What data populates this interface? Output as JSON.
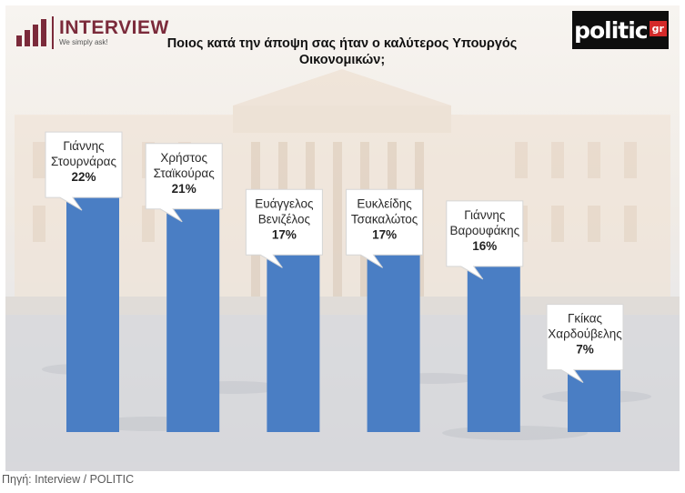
{
  "header": {
    "brand_left": "INTERVIEW",
    "brand_left_tagline": "We simply ask!",
    "brand_right": "politic",
    "brand_right_badge": "gr"
  },
  "footer": {
    "source": "Πηγή: Interview / POLITIC"
  },
  "colors": {
    "bar": "#4a7ec4",
    "brand_left": "#7b2a3a",
    "brand_right_bg": "#0e0e0e",
    "brand_right_badge": "#d42a2a"
  },
  "chart_data": {
    "type": "bar",
    "title": "Ποιος κατά την άποψη σας ήταν ο καλύτερος Υπουργός Οικονομικών;",
    "categories": [
      [
        "Γιάννης",
        "Στουρνάρας"
      ],
      [
        "Χρήστος",
        "Σταϊκούρας"
      ],
      [
        "Ευάγγελος",
        "Βενιζέλος"
      ],
      [
        "Ευκλείδης",
        "Τσακαλώτος"
      ],
      [
        "Γιάννης",
        "Βαρουφάκης"
      ],
      [
        "Γκίκας",
        "Χαρδούβελης"
      ]
    ],
    "values": [
      22,
      21,
      17,
      17,
      16,
      7
    ],
    "value_labels": [
      "22%",
      "21%",
      "17%",
      "17%",
      "16%",
      "7%"
    ],
    "ylim": [
      0,
      25
    ],
    "grid": false,
    "legend": "none"
  }
}
